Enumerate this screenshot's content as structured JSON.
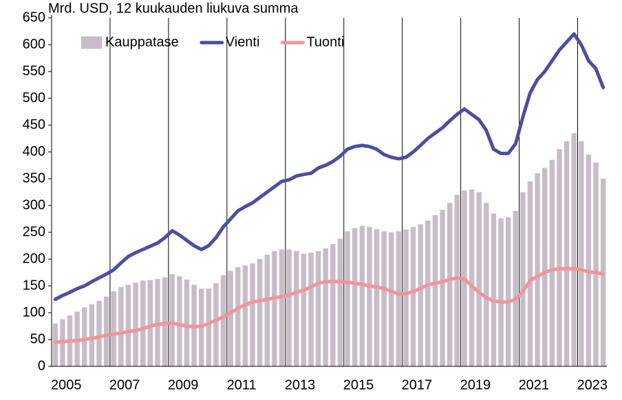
{
  "chart_data": {
    "type": "combo",
    "ylabel": "Mrd. USD, 12 kuukauden liukuva summa",
    "x": [
      2005,
      2005.25,
      2005.5,
      2005.75,
      2006,
      2006.25,
      2006.5,
      2006.75,
      2007,
      2007.25,
      2007.5,
      2007.75,
      2008,
      2008.25,
      2008.5,
      2008.75,
      2009,
      2009.25,
      2009.5,
      2009.75,
      2010,
      2010.25,
      2010.5,
      2010.75,
      2011,
      2011.25,
      2011.5,
      2011.75,
      2012,
      2012.25,
      2012.5,
      2012.75,
      2013,
      2013.25,
      2013.5,
      2013.75,
      2014,
      2014.25,
      2014.5,
      2014.75,
      2015,
      2015.25,
      2015.5,
      2015.75,
      2016,
      2016.25,
      2016.5,
      2016.75,
      2017,
      2017.25,
      2017.5,
      2017.75,
      2018,
      2018.25,
      2018.5,
      2018.75,
      2019,
      2019.25,
      2019.5,
      2019.75,
      2020,
      2020.25,
      2020.5,
      2020.75,
      2021,
      2021.25,
      2021.5,
      2021.75,
      2022,
      2022.25,
      2022.5,
      2022.75,
      2023,
      2023.25,
      2023.5,
      2023.75
    ],
    "series": [
      {
        "name": "Kauppatase",
        "type": "bar",
        "color": "#c8bcc8",
        "values": [
          80,
          88,
          95,
          102,
          110,
          116,
          122,
          130,
          140,
          148,
          152,
          156,
          160,
          161,
          163,
          166,
          172,
          168,
          162,
          152,
          145,
          145,
          155,
          170,
          178,
          185,
          188,
          192,
          200,
          208,
          215,
          218,
          218,
          215,
          210,
          212,
          215,
          220,
          228,
          238,
          252,
          258,
          262,
          260,
          256,
          252,
          250,
          252,
          255,
          260,
          265,
          272,
          282,
          292,
          305,
          320,
          328,
          330,
          325,
          305,
          285,
          276,
          278,
          290,
          325,
          345,
          360,
          370,
          385,
          405,
          420,
          435,
          420,
          395,
          380,
          350
        ]
      },
      {
        "name": "Vienti",
        "type": "line",
        "color": "#4a4f9e",
        "values": [
          125,
          132,
          138,
          145,
          150,
          158,
          165,
          172,
          180,
          193,
          205,
          212,
          218,
          224,
          230,
          240,
          253,
          245,
          235,
          225,
          218,
          225,
          240,
          260,
          275,
          290,
          298,
          305,
          315,
          325,
          335,
          345,
          348,
          355,
          358,
          360,
          370,
          375,
          382,
          392,
          405,
          410,
          412,
          410,
          405,
          395,
          390,
          387,
          390,
          400,
          412,
          425,
          435,
          445,
          458,
          470,
          480,
          470,
          460,
          440,
          405,
          397,
          397,
          415,
          465,
          510,
          535,
          550,
          570,
          590,
          605,
          620,
          600,
          570,
          555,
          520
        ]
      },
      {
        "name": "Tuonti",
        "type": "line",
        "color": "#f0959a",
        "values": [
          45,
          46,
          47,
          48,
          50,
          52,
          55,
          58,
          60,
          62,
          65,
          67,
          70,
          75,
          78,
          80,
          80,
          78,
          75,
          74,
          75,
          80,
          86,
          92,
          100,
          108,
          115,
          120,
          122,
          125,
          128,
          130,
          133,
          138,
          142,
          148,
          155,
          158,
          158,
          158,
          157,
          155,
          153,
          150,
          148,
          145,
          140,
          135,
          135,
          140,
          145,
          152,
          155,
          158,
          162,
          165,
          163,
          150,
          138,
          128,
          122,
          120,
          120,
          125,
          140,
          160,
          168,
          175,
          180,
          182,
          182,
          182,
          180,
          176,
          175,
          172
        ]
      }
    ],
    "xlim": [
      2005,
      2024
    ],
    "xticks": [
      {
        "value": 2005.5,
        "label": "2005"
      },
      {
        "value": 2007.5,
        "label": "2007"
      },
      {
        "value": 2009.5,
        "label": "2009"
      },
      {
        "value": 2011.5,
        "label": "2011"
      },
      {
        "value": 2013.5,
        "label": "2013"
      },
      {
        "value": 2015.5,
        "label": "2015"
      },
      {
        "value": 2017.5,
        "label": "2017"
      },
      {
        "value": 2019.5,
        "label": "2019"
      },
      {
        "value": 2021.5,
        "label": "2021"
      },
      {
        "value": 2023.5,
        "label": "2023"
      }
    ],
    "xgrid": [
      2007,
      2009,
      2011,
      2013,
      2015,
      2017,
      2019,
      2021,
      2023
    ],
    "ylim": [
      0,
      650
    ],
    "yticks": [
      0,
      50,
      100,
      150,
      200,
      250,
      300,
      350,
      400,
      450,
      500,
      550,
      600,
      650
    ],
    "legend": "top"
  }
}
